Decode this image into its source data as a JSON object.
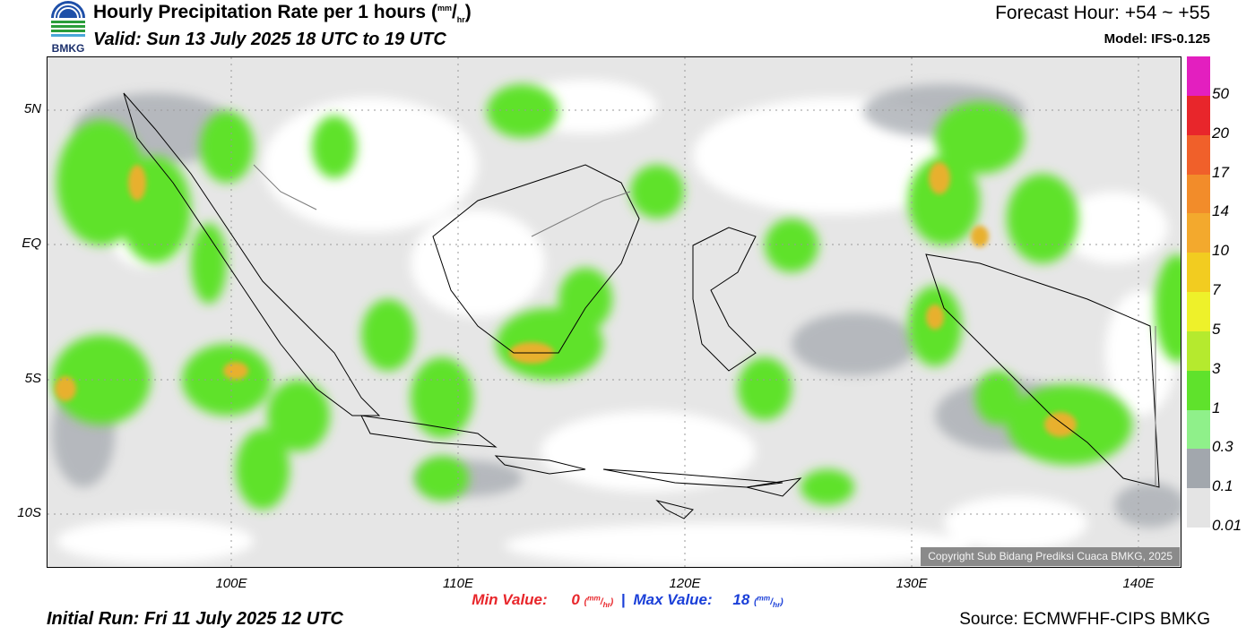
{
  "header": {
    "title_text": "Hourly Precipitation Rate per 1 hours",
    "title_unit_num": "mm",
    "title_unit_den": "hr",
    "valid": "Valid: Sun 13 July 2025 18 UTC to 19 UTC",
    "forecast_hour": "Forecast Hour: +54 ~ +55",
    "model": "Model: IFS-0.125"
  },
  "logo": {
    "text": "BMKG",
    "icon": "bmkg-logo-icon"
  },
  "axes": {
    "lat_labels": [
      "5N",
      "EQ",
      "5S",
      "10S"
    ],
    "lon_labels": [
      "100E",
      "110E",
      "120E",
      "130E",
      "140E"
    ]
  },
  "stats": {
    "min_label": "Min Value:",
    "min_value": "0",
    "max_label": "Max Value:",
    "max_value": "18",
    "unit_num": "mm",
    "unit_den": "hr",
    "separator": "|"
  },
  "colorbar": {
    "labels": [
      "50",
      "20",
      "17",
      "14",
      "10",
      "7",
      "5",
      "3",
      "1",
      "0.3",
      "0.1",
      "0.01"
    ],
    "colors": [
      "#e31fbf",
      "#e8262b",
      "#f0602a",
      "#f28c2a",
      "#f3a92d",
      "#f2cc20",
      "#eef12a",
      "#b5ea2e",
      "#5fe22c",
      "#8ff08a",
      "#a2a7ad",
      "#e4e4e4"
    ]
  },
  "footer": {
    "initial_run": "Initial Run: Fri 11 July 2025 12 UTC",
    "source": "Source: ECMWFHF-CIPS BMKG",
    "copyright": "Copyright Sub Bidang Prediksi Cuaca BMKG, 2025"
  }
}
